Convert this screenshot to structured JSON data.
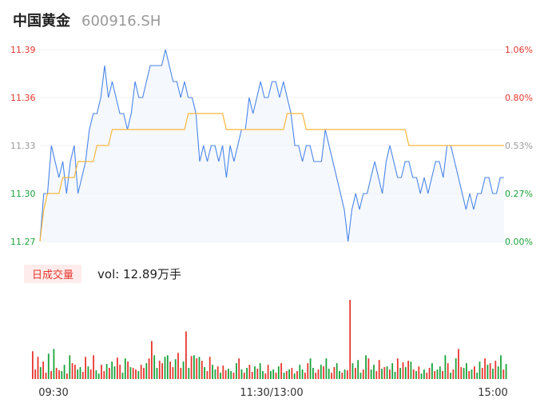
{
  "header": {
    "name": "中国黄金",
    "code": "600916.SH"
  },
  "volume_panel": {
    "badge_label": "日成交量",
    "vol_label": "vol: 12.89万手"
  },
  "colors": {
    "up": "#e8372f",
    "down": "#1aa33b",
    "neutral": "#999999",
    "price_line": "#4a86e8",
    "avg_line": "#f6b73c"
  },
  "chart_data": [
    {
      "type": "line",
      "title": "",
      "xlabel": "",
      "ylabel": "",
      "ylim": [
        11.27,
        11.39
      ],
      "y_tick_labels": [
        "11.39",
        "11.36",
        "11.33",
        "11.30",
        "11.27"
      ],
      "y_right_tick_labels": [
        "1.06%",
        "0.80%",
        "0.53%",
        "0.27%",
        "0.00%"
      ],
      "x_tick_labels": [
        "09:30",
        "11:30/13:00",
        "15:00"
      ],
      "prev_close": 11.27,
      "series": [
        {
          "role": "price",
          "values": [
            11.27,
            11.3,
            11.3,
            11.33,
            11.32,
            11.31,
            11.32,
            11.3,
            11.32,
            11.33,
            11.3,
            11.31,
            11.32,
            11.34,
            11.35,
            11.35,
            11.36,
            11.38,
            11.36,
            11.37,
            11.36,
            11.35,
            11.35,
            11.34,
            11.35,
            11.37,
            11.36,
            11.36,
            11.37,
            11.38,
            11.38,
            11.38,
            11.38,
            11.39,
            11.38,
            11.37,
            11.37,
            11.36,
            11.37,
            11.36,
            11.36,
            11.35,
            11.32,
            11.33,
            11.32,
            11.33,
            11.33,
            11.32,
            11.33,
            11.31,
            11.33,
            11.32,
            11.33,
            11.34,
            11.34,
            11.36,
            11.35,
            11.36,
            11.37,
            11.36,
            11.36,
            11.37,
            11.37,
            11.36,
            11.37,
            11.36,
            11.35,
            11.33,
            11.33,
            11.32,
            11.33,
            11.33,
            11.32,
            11.32,
            11.32,
            11.34,
            11.33,
            11.32,
            11.31,
            11.3,
            11.29,
            11.27,
            11.29,
            11.3,
            11.29,
            11.3,
            11.3,
            11.31,
            11.32,
            11.31,
            11.3,
            11.32,
            11.33,
            11.32,
            11.31,
            11.31,
            11.32,
            11.32,
            11.31,
            11.31,
            11.3,
            11.31,
            11.3,
            11.31,
            11.32,
            11.32,
            11.31,
            11.33,
            11.33,
            11.32,
            11.31,
            11.3,
            11.29,
            11.3,
            11.29,
            11.3,
            11.3,
            11.31,
            11.31,
            11.3,
            11.3,
            11.31,
            11.31
          ]
        },
        {
          "role": "average",
          "values": [
            11.27,
            11.29,
            11.3,
            11.3,
            11.3,
            11.3,
            11.31,
            11.31,
            11.31,
            11.31,
            11.32,
            11.32,
            11.32,
            11.32,
            11.32,
            11.33,
            11.33,
            11.33,
            11.33,
            11.34,
            11.34,
            11.34,
            11.34,
            11.34,
            11.34,
            11.34,
            11.34,
            11.34,
            11.34,
            11.34,
            11.34,
            11.34,
            11.34,
            11.34,
            11.34,
            11.34,
            11.34,
            11.34,
            11.34,
            11.35,
            11.35,
            11.35,
            11.35,
            11.35,
            11.35,
            11.35,
            11.35,
            11.35,
            11.35,
            11.34,
            11.34,
            11.34,
            11.34,
            11.34,
            11.34,
            11.34,
            11.34,
            11.34,
            11.34,
            11.34,
            11.34,
            11.34,
            11.34,
            11.34,
            11.34,
            11.35,
            11.35,
            11.35,
            11.35,
            11.35,
            11.34,
            11.34,
            11.34,
            11.34,
            11.34,
            11.34,
            11.34,
            11.34,
            11.34,
            11.34,
            11.34,
            11.34,
            11.34,
            11.34,
            11.34,
            11.34,
            11.34,
            11.34,
            11.34,
            11.34,
            11.34,
            11.34,
            11.34,
            11.34,
            11.34,
            11.34,
            11.34,
            11.33,
            11.33,
            11.33,
            11.33,
            11.33,
            11.33,
            11.33,
            11.33,
            11.33,
            11.33,
            11.33,
            11.33,
            11.33,
            11.33,
            11.33,
            11.33,
            11.33,
            11.33,
            11.33,
            11.33,
            11.33,
            11.33,
            11.33,
            11.33,
            11.33,
            11.33
          ]
        }
      ]
    },
    {
      "type": "bar",
      "title": "",
      "xlabel": "",
      "ylabel": "",
      "ylim": [
        0,
        105
      ],
      "values": [
        35,
        12,
        28,
        15,
        22,
        8,
        32,
        10,
        38,
        14,
        11,
        10,
        18,
        7,
        30,
        20,
        18,
        12,
        15,
        9,
        28,
        16,
        12,
        30,
        11,
        7,
        18,
        10,
        19,
        14,
        22,
        16,
        27,
        18,
        8,
        26,
        22,
        15,
        14,
        12,
        10,
        18,
        14,
        20,
        26,
        48,
        30,
        14,
        23,
        20,
        28,
        30,
        22,
        15,
        25,
        33,
        14,
        22,
        60,
        14,
        29,
        30,
        26,
        28,
        23,
        15,
        10,
        28,
        18,
        12,
        16,
        8,
        17,
        11,
        13,
        10,
        8,
        20,
        26,
        12,
        8,
        14,
        18,
        9,
        16,
        13,
        20,
        10,
        7,
        18,
        10,
        12,
        8,
        16,
        20,
        8,
        10,
        12,
        14,
        7,
        10,
        18,
        12,
        8,
        20,
        26,
        14,
        8,
        12,
        18,
        16,
        26,
        13,
        8,
        15,
        20,
        10,
        8,
        12,
        11,
        100,
        20,
        14,
        24,
        8,
        12,
        30,
        26,
        12,
        18,
        10,
        24,
        13,
        15,
        16,
        12,
        20,
        9,
        26,
        14,
        21,
        15,
        23,
        22,
        12,
        10,
        16,
        7,
        12,
        8,
        14,
        20,
        10,
        12,
        16,
        10,
        30,
        20,
        8,
        12,
        26,
        38,
        15,
        14,
        20,
        10,
        12,
        16,
        8,
        22,
        14,
        26,
        18,
        20,
        13,
        23,
        16,
        30,
        12,
        19
      ],
      "colors": [
        "up",
        "up",
        "up",
        "down",
        "up",
        "up",
        "down",
        "up",
        "down",
        "up",
        "up",
        "down",
        "down",
        "up",
        "down",
        "up",
        "up",
        "down",
        "down",
        "up",
        "up",
        "down",
        "up",
        "up",
        "down",
        "down",
        "up",
        "up",
        "down",
        "up",
        "down",
        "down",
        "up",
        "up",
        "down",
        "down",
        "up",
        "down",
        "up",
        "up",
        "down",
        "up",
        "up",
        "down",
        "up",
        "up",
        "down",
        "down",
        "up",
        "up",
        "down",
        "down",
        "up",
        "up",
        "down",
        "up",
        "up",
        "down",
        "up",
        "down",
        "up",
        "down",
        "up",
        "down",
        "up",
        "down",
        "up",
        "up",
        "down",
        "down",
        "up",
        "down",
        "up",
        "up",
        "down",
        "down",
        "up",
        "down",
        "up",
        "down",
        "up",
        "down",
        "up",
        "up",
        "down",
        "up",
        "down",
        "down",
        "up",
        "up",
        "down",
        "down",
        "up",
        "down",
        "up",
        "down",
        "up",
        "down",
        "up",
        "down",
        "up",
        "down",
        "down",
        "up",
        "up",
        "down",
        "down",
        "up",
        "up",
        "down",
        "up",
        "down",
        "down",
        "up",
        "up",
        "down",
        "down",
        "up",
        "down",
        "up",
        "up",
        "down",
        "up",
        "down",
        "down",
        "up",
        "down",
        "up",
        "down",
        "down",
        "up",
        "up",
        "down",
        "up",
        "down",
        "up",
        "down",
        "down",
        "up",
        "down",
        "up",
        "down",
        "up",
        "down",
        "up",
        "down",
        "up",
        "down",
        "down",
        "up",
        "up",
        "down",
        "up",
        "down",
        "down",
        "up",
        "down",
        "up",
        "down",
        "up",
        "down",
        "up",
        "up",
        "down",
        "down",
        "up",
        "down",
        "up",
        "down",
        "down",
        "up",
        "up",
        "down",
        "up",
        "down",
        "up",
        "down",
        "down",
        "up",
        "down"
      ]
    }
  ]
}
